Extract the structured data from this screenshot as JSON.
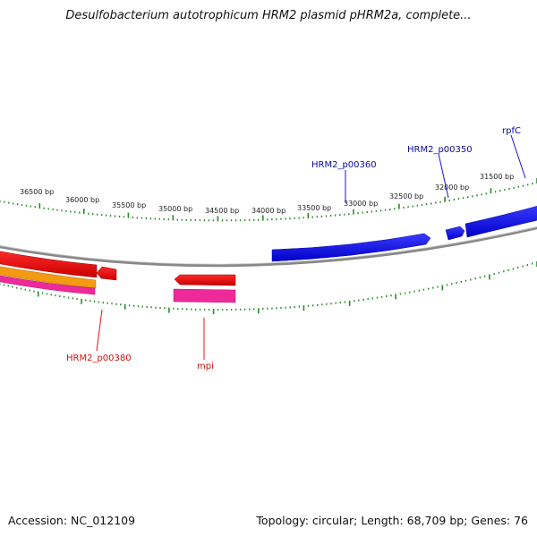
{
  "title": "Desulfobacterium autotrophicum HRM2 plasmid pHRM2a, complete...",
  "accession_text": "Accession: NC_012109",
  "summary_text": "Topology: circular; Length: 68,709 bp; Genes: 76",
  "colors": {
    "backbone": "#8f8f8f",
    "tick": "#2a8a2a",
    "forward_gene": "#1212e6",
    "reverse_gene": "#ee1111",
    "orange_gene": "#f39a12",
    "pink_gene": "#ee2a9a",
    "label_blue": "#0a0a9a",
    "label_red": "#cc1111"
  },
  "scale_labels": [
    "36500 bp",
    "36000 bp",
    "35500 bp",
    "35000 bp",
    "34500 bp",
    "34000 bp",
    "33500 bp",
    "33000 bp",
    "32500 bp",
    "32000 bp",
    "31500 bp"
  ],
  "gene_labels": [
    {
      "text": "rpfC",
      "strand": "forward"
    },
    {
      "text": "HRM2_p00350",
      "strand": "forward"
    },
    {
      "text": "HRM2_p00360",
      "strand": "forward"
    },
    {
      "text": "HRM2_p00380",
      "strand": "reverse"
    },
    {
      "text": "mpi",
      "strand": "reverse"
    }
  ]
}
